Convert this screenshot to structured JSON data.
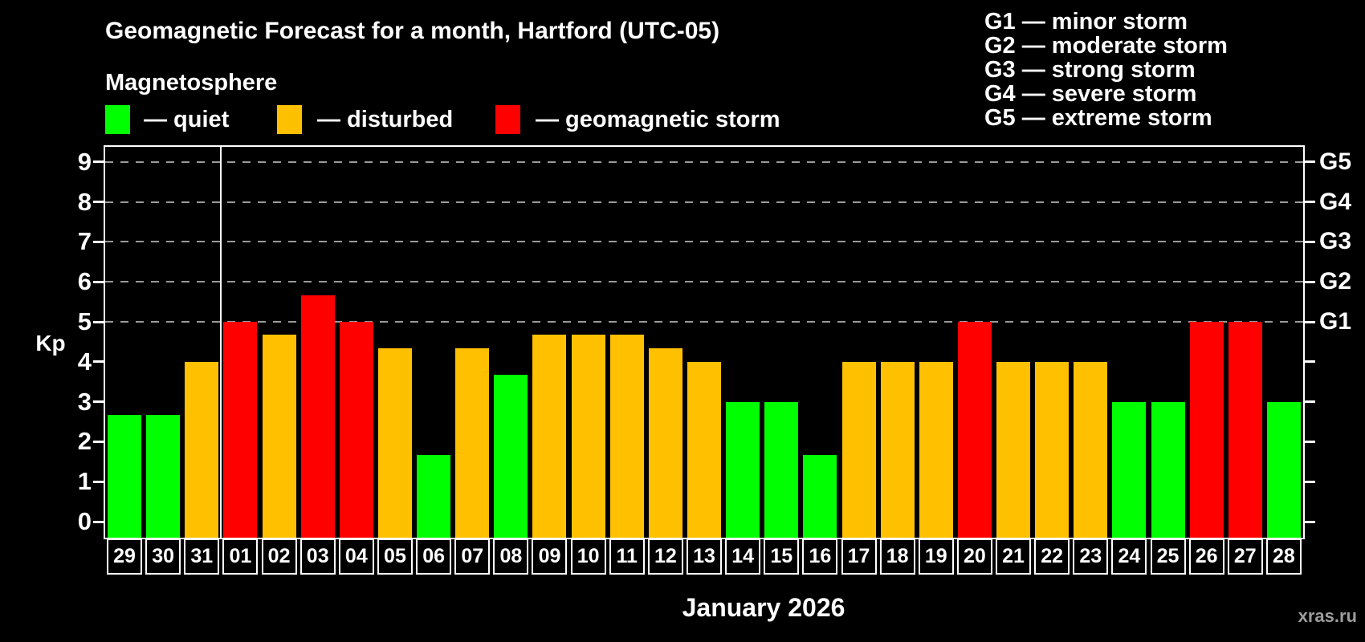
{
  "header": {
    "title": "Geomagnetic Forecast for a month, Hartford (UTC-05)",
    "subtitle": "Magnetosphere"
  },
  "legend": {
    "items": [
      {
        "label": "— quiet",
        "status": "quiet",
        "color": "#00FF00"
      },
      {
        "label": "— disturbed",
        "status": "disturbed",
        "color": "#FFC000"
      },
      {
        "label": "— geomagnetic storm",
        "status": "storm",
        "color": "#FF0000"
      }
    ]
  },
  "g_legend": {
    "lines": [
      "G1 — minor storm",
      "G2 — moderate storm",
      "G3 — strong storm",
      "G4 — severe storm",
      "G5 — extreme storm"
    ]
  },
  "watermark": "xras.ru",
  "chart_data": {
    "type": "bar",
    "title": "Geomagnetic Forecast for a month, Hartford (UTC-05)",
    "subtitle": "Magnetosphere",
    "ylabel": "Kp",
    "xlabel": "January 2026",
    "ylim": [
      0,
      9
    ],
    "y_ticks": [
      0,
      1,
      2,
      3,
      4,
      5,
      6,
      7,
      8,
      9
    ],
    "gridlines_at": [
      5,
      6,
      7,
      8,
      9
    ],
    "grid_style": "dashed",
    "legend_position": "top",
    "right_axis_labels": {
      "5": "G1",
      "6": "G2",
      "7": "G3",
      "8": "G4",
      "9": "G5"
    },
    "month_divider_after_category": "31",
    "palette": {
      "quiet": "#00FF00",
      "disturbed": "#FFC000",
      "storm": "#FF0000"
    },
    "categories": [
      "29",
      "30",
      "31",
      "01",
      "02",
      "03",
      "04",
      "05",
      "06",
      "07",
      "08",
      "09",
      "10",
      "11",
      "12",
      "13",
      "14",
      "15",
      "16",
      "17",
      "18",
      "19",
      "20",
      "21",
      "22",
      "23",
      "24",
      "25",
      "26",
      "27",
      "28"
    ],
    "values": [
      2.67,
      2.67,
      4.0,
      5.0,
      4.67,
      5.67,
      5.0,
      4.33,
      1.67,
      4.33,
      3.67,
      4.67,
      4.67,
      4.67,
      4.33,
      4.0,
      3.0,
      3.0,
      1.67,
      4.0,
      4.0,
      4.0,
      5.0,
      4.0,
      4.0,
      4.0,
      3.0,
      3.0,
      5.0,
      5.0,
      3.0
    ],
    "statuses": [
      "quiet",
      "quiet",
      "disturbed",
      "storm",
      "disturbed",
      "storm",
      "storm",
      "disturbed",
      "quiet",
      "disturbed",
      "quiet",
      "disturbed",
      "disturbed",
      "disturbed",
      "disturbed",
      "disturbed",
      "quiet",
      "quiet",
      "quiet",
      "disturbed",
      "disturbed",
      "disturbed",
      "storm",
      "disturbed",
      "disturbed",
      "disturbed",
      "quiet",
      "quiet",
      "storm",
      "storm",
      "quiet"
    ]
  }
}
